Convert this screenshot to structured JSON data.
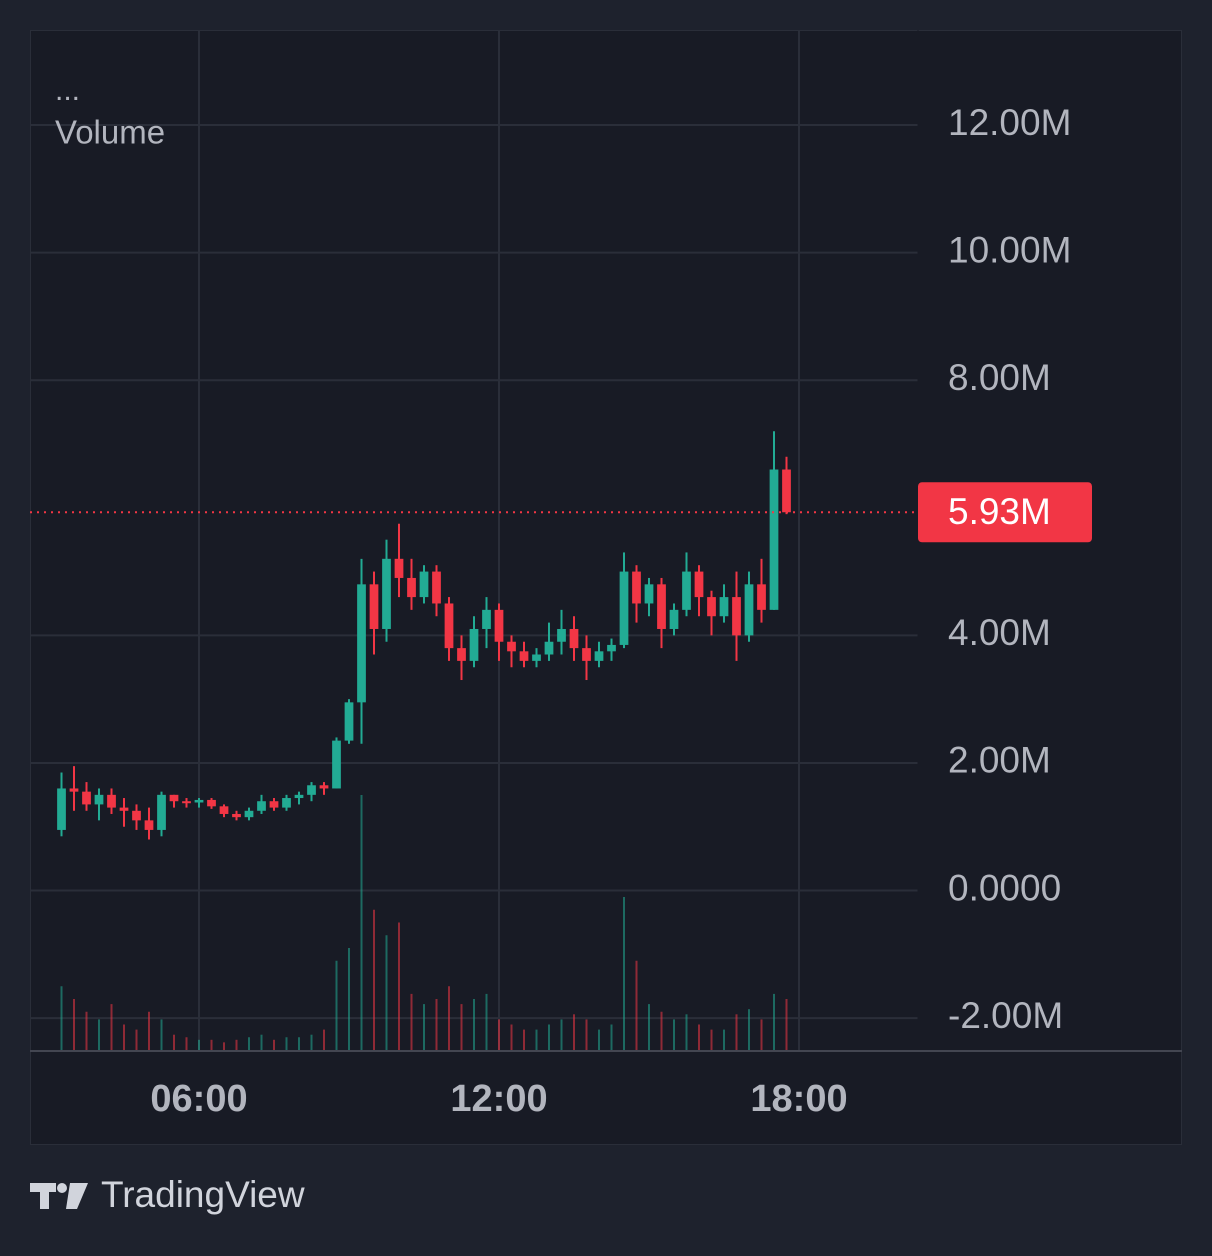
{
  "chart_data": {
    "type": "candlestick",
    "menu": "...",
    "study_label": "Volume",
    "x": [
      3.25,
      3.5,
      3.75,
      4.0,
      4.25,
      4.5,
      4.75,
      5.0,
      5.25,
      5.5,
      5.75,
      6.0,
      6.25,
      6.5,
      6.75,
      7.0,
      7.25,
      7.5,
      7.75,
      8.0,
      8.25,
      8.5,
      8.75,
      9.0,
      9.25,
      9.5,
      9.75,
      10.0,
      10.25,
      10.5,
      10.75,
      11.0,
      11.25,
      11.5,
      11.75,
      12.0,
      12.25,
      12.5,
      12.75,
      13.0,
      13.25,
      13.5,
      13.75,
      14.0,
      14.25,
      14.5,
      14.75,
      15.0,
      15.25,
      15.5,
      15.75,
      16.0,
      16.25,
      16.5,
      16.75,
      17.0,
      17.25,
      17.5,
      17.75
    ],
    "open": [
      0.95,
      1.6,
      1.55,
      1.35,
      1.5,
      1.3,
      1.25,
      1.1,
      0.95,
      1.5,
      1.4,
      1.38,
      1.42,
      1.32,
      1.2,
      1.15,
      1.25,
      1.4,
      1.3,
      1.45,
      1.5,
      1.65,
      1.6,
      2.35,
      2.95,
      4.8,
      4.1,
      5.2,
      4.9,
      4.6,
      5.0,
      4.5,
      3.8,
      3.6,
      4.1,
      4.4,
      3.9,
      3.75,
      3.6,
      3.7,
      3.9,
      4.1,
      3.8,
      3.6,
      3.75,
      3.85,
      5.0,
      4.5,
      4.8,
      4.1,
      4.4,
      5.0,
      4.6,
      4.3,
      4.6,
      4.0,
      4.8,
      4.4,
      6.6
    ],
    "high": [
      1.85,
      1.95,
      1.7,
      1.6,
      1.6,
      1.45,
      1.35,
      1.3,
      1.55,
      1.5,
      1.45,
      1.45,
      1.45,
      1.35,
      1.25,
      1.3,
      1.5,
      1.45,
      1.5,
      1.55,
      1.7,
      1.7,
      2.4,
      3.0,
      5.2,
      5.0,
      5.5,
      5.75,
      5.2,
      5.1,
      5.1,
      4.6,
      4.0,
      4.3,
      4.6,
      4.5,
      4.0,
      3.9,
      3.8,
      4.2,
      4.4,
      4.3,
      4.0,
      3.9,
      3.95,
      5.3,
      5.1,
      4.9,
      4.9,
      4.5,
      5.3,
      5.1,
      4.7,
      4.8,
      5.0,
      5.0,
      5.2,
      7.2,
      6.8
    ],
    "low": [
      0.85,
      1.25,
      1.25,
      1.1,
      1.2,
      1.0,
      0.95,
      0.8,
      0.85,
      1.3,
      1.3,
      1.3,
      1.28,
      1.15,
      1.1,
      1.1,
      1.2,
      1.25,
      1.25,
      1.35,
      1.4,
      1.5,
      1.6,
      2.3,
      2.3,
      3.7,
      3.9,
      4.6,
      4.4,
      4.5,
      4.3,
      3.6,
      3.3,
      3.5,
      3.8,
      3.6,
      3.5,
      3.5,
      3.5,
      3.6,
      3.7,
      3.6,
      3.3,
      3.5,
      3.6,
      3.8,
      4.2,
      4.3,
      3.8,
      4.0,
      4.3,
      4.3,
      4.0,
      4.2,
      3.6,
      3.9,
      4.2,
      4.4,
      5.9
    ],
    "close": [
      1.6,
      1.55,
      1.35,
      1.5,
      1.3,
      1.25,
      1.1,
      0.95,
      1.5,
      1.4,
      1.38,
      1.42,
      1.32,
      1.2,
      1.15,
      1.25,
      1.4,
      1.3,
      1.45,
      1.5,
      1.65,
      1.6,
      2.35,
      2.95,
      4.8,
      4.1,
      5.2,
      4.9,
      4.6,
      5.0,
      4.5,
      3.8,
      3.6,
      4.1,
      4.4,
      3.9,
      3.75,
      3.6,
      3.7,
      3.9,
      4.1,
      3.8,
      3.6,
      3.75,
      3.85,
      5.0,
      4.5,
      4.8,
      4.1,
      4.4,
      5.0,
      4.6,
      4.3,
      4.6,
      4.0,
      4.8,
      4.4,
      6.6,
      5.93
    ],
    "volume": [
      25,
      20,
      15,
      12,
      18,
      10,
      8,
      15,
      12,
      6,
      5,
      4,
      4,
      3,
      4,
      5,
      6,
      4,
      5,
      5,
      6,
      8,
      35,
      40,
      100,
      55,
      45,
      50,
      22,
      18,
      20,
      25,
      18,
      20,
      22,
      12,
      10,
      8,
      8,
      10,
      12,
      14,
      12,
      8,
      10,
      60,
      35,
      18,
      15,
      12,
      14,
      10,
      8,
      8,
      14,
      16,
      12,
      22,
      20
    ],
    "up_color": "#22ab94",
    "down_color": "#f23645",
    "xlim": [
      2.62,
      20.38
    ],
    "xticks": [
      {
        "value": 6,
        "label": "06:00"
      },
      {
        "value": 12,
        "label": "12:00"
      },
      {
        "value": 18,
        "label": "18:00"
      }
    ],
    "ylim": [
      -2.5,
      13.49
    ],
    "yticks": [
      {
        "value": -2,
        "label": "-2.00M"
      },
      {
        "value": 0,
        "label": "0.0000"
      },
      {
        "value": 2,
        "label": "2.00M"
      },
      {
        "value": 4,
        "label": "4.00M"
      },
      {
        "value": 8,
        "label": "8.00M"
      },
      {
        "value": 10,
        "label": "10.00M"
      },
      {
        "value": 12,
        "label": "12.00M"
      }
    ],
    "vlim": [
      0,
      100
    ],
    "last_price": {
      "value": 5.93,
      "label": "5.93M"
    },
    "grid": true
  },
  "footer": {
    "brand": "TradingView"
  }
}
